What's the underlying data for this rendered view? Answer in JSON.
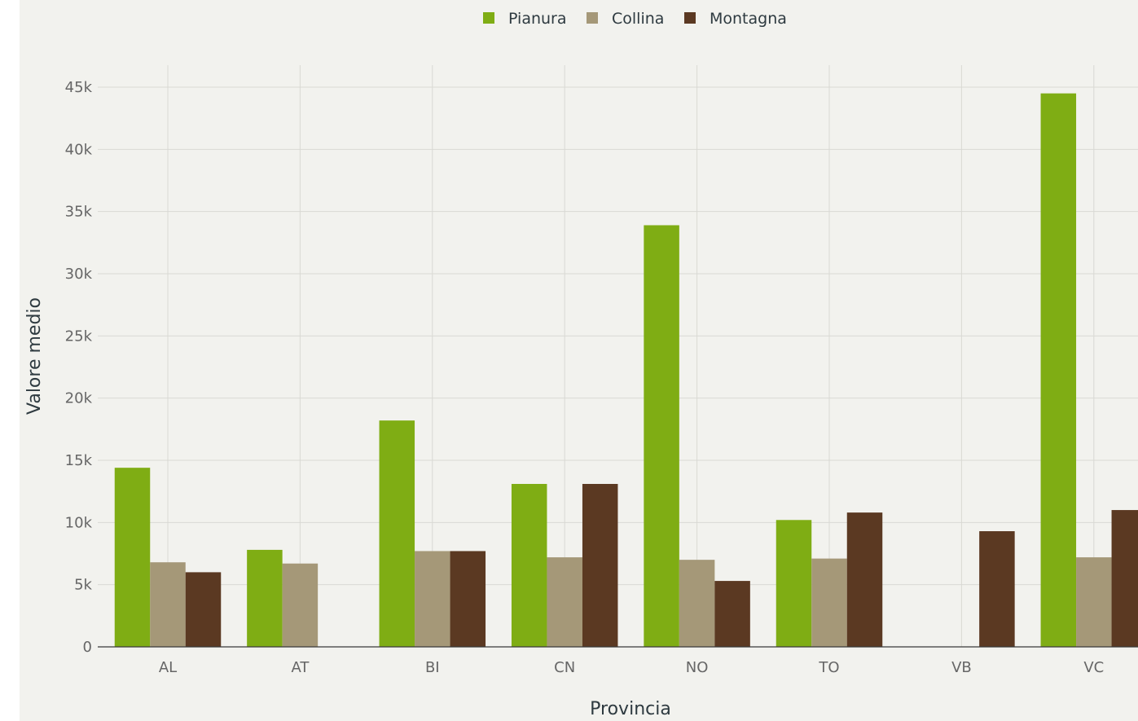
{
  "chart_data": {
    "type": "bar",
    "title": "",
    "xlabel": "Provincia",
    "ylabel": "Valore medio",
    "categories": [
      "AL",
      "AT",
      "BI",
      "CN",
      "NO",
      "TO",
      "VB",
      "VC"
    ],
    "series": [
      {
        "name": "Pianura",
        "color": "#7fad14",
        "values": [
          14400,
          7800,
          18200,
          13100,
          33900,
          10200,
          null,
          44500
        ]
      },
      {
        "name": "Collina",
        "color": "#a59878",
        "values": [
          6800,
          6700,
          7700,
          7200,
          7000,
          7100,
          null,
          7200
        ]
      },
      {
        "name": "Montagna",
        "color": "#5b3922",
        "values": [
          6000,
          null,
          7700,
          13100,
          5300,
          10800,
          9300,
          11000
        ]
      }
    ],
    "ylim": [
      0,
      45000
    ],
    "yticks": [
      0,
      5000,
      10000,
      15000,
      20000,
      25000,
      30000,
      35000,
      40000,
      45000
    ],
    "ytick_labels": [
      "0",
      "5k",
      "10k",
      "15k",
      "20k",
      "25k",
      "30k",
      "35k",
      "40k",
      "45k"
    ],
    "grid": true,
    "legend_position": "top-center"
  }
}
